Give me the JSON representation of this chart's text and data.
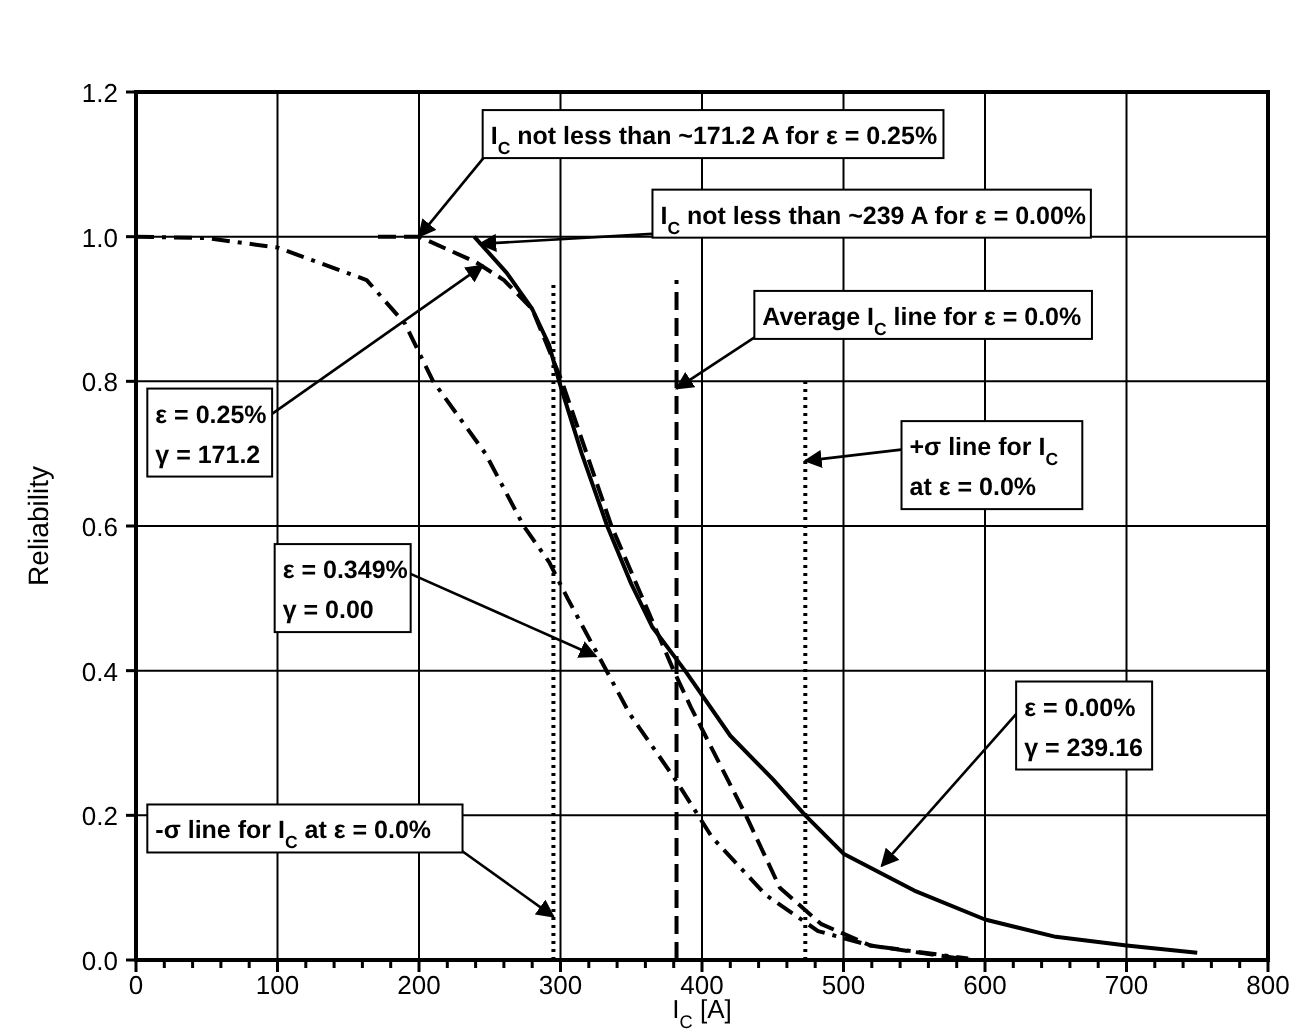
{
  "chart_data": {
    "type": "line",
    "xlabel": "I$_{C}$ [A]",
    "ylabel": "Reliability",
    "xlim": [
      0,
      800
    ],
    "ylim": [
      0,
      1.2
    ],
    "xticks": [
      0,
      {
        "value": 20,
        "label": null
      },
      {
        "value": 40,
        "label": null
      },
      {
        "value": 60,
        "label": null
      },
      {
        "value": 80,
        "label": null
      },
      100,
      {
        "value": 120,
        "label": null
      },
      {
        "value": 140,
        "label": null
      },
      {
        "value": 160,
        "label": null
      },
      {
        "value": 180,
        "label": null
      },
      200,
      {
        "value": 220,
        "label": null
      },
      {
        "value": 240,
        "label": null
      },
      {
        "value": 260,
        "label": null
      },
      {
        "value": 280,
        "label": null
      },
      300,
      {
        "value": 320,
        "label": null
      },
      {
        "value": 340,
        "label": null
      },
      {
        "value": 360,
        "label": null
      },
      {
        "value": 380,
        "label": null
      },
      400,
      {
        "value": 420,
        "label": null
      },
      {
        "value": 440,
        "label": null
      },
      {
        "value": 460,
        "label": null
      },
      {
        "value": 480,
        "label": null
      },
      500,
      {
        "value": 520,
        "label": null
      },
      {
        "value": 540,
        "label": null
      },
      {
        "value": 560,
        "label": null
      },
      {
        "value": 580,
        "label": null
      },
      600,
      {
        "value": 620,
        "label": null
      },
      {
        "value": 640,
        "label": null
      },
      {
        "value": 660,
        "label": null
      },
      {
        "value": 680,
        "label": null
      },
      700,
      {
        "value": 720,
        "label": null
      },
      {
        "value": 740,
        "label": null
      },
      {
        "value": 760,
        "label": null
      },
      {
        "value": 780,
        "label": null
      },
      800
    ],
    "yticks": [
      {
        "value": 0,
        "label": "0.0"
      },
      {
        "value": 0.2,
        "label": "0.2"
      },
      {
        "value": 0.4,
        "label": "0.4"
      },
      {
        "value": 0.6,
        "label": "0.6"
      },
      {
        "value": 0.8,
        "label": "0.8"
      },
      {
        "value": 1,
        "label": "1.0"
      },
      {
        "value": 1.2,
        "label": "1.2"
      }
    ],
    "grid": true,
    "series": [
      {
        "color": "#000000",
        "line_style": "solid",
        "x": [
          239,
          262,
          280,
          292,
          299,
          315,
          333,
          350,
          365,
          388,
          420,
          450,
          473,
          500,
          550,
          600,
          650,
          700,
          750
        ],
        "values": [
          1.0,
          0.95,
          0.9,
          0.85,
          0.8,
          0.7,
          0.6,
          0.52,
          0.46,
          0.4,
          0.31,
          0.25,
          0.2,
          0.147,
          0.096,
          0.056,
          0.032,
          0.02,
          0.01
        ]
      },
      {
        "color": "#000000",
        "line_style": "dashed",
        "x": [
          171,
          200,
          240,
          260,
          280,
          301,
          336,
          380,
          392,
          431,
          455,
          484,
          519,
          572,
          590
        ],
        "values": [
          1.0,
          1.0,
          0.965,
          0.94,
          0.9,
          0.8,
          0.6,
          0.4,
          0.35,
          0.2,
          0.1,
          0.05,
          0.02,
          0.005,
          0.0
        ]
      },
      {
        "color": "#000000",
        "line_style": "dashdot",
        "x": [
          0,
          50,
          100,
          163,
          190,
          210,
          247,
          274,
          292,
          305,
          327,
          349,
          381,
          407,
          445,
          482,
          519,
          588
        ],
        "values": [
          1.0,
          0.998,
          0.985,
          0.94,
          0.88,
          0.8,
          0.7,
          0.6,
          0.55,
          0.5,
          0.42,
          0.34,
          0.25,
          0.17,
          0.09,
          0.04,
          0.02,
          0.002
        ]
      },
      {
        "color": "#000000",
        "line_style": "dotted",
        "x": [
          295,
          295
        ],
        "values": [
          0,
          0.94
        ]
      },
      {
        "color": "#000000",
        "line_style": "dashed",
        "x": [
          382,
          382
        ],
        "values": [
          0,
          0.94
        ]
      },
      {
        "color": "#000000",
        "line_style": "dotted",
        "x": [
          473,
          473
        ],
        "values": [
          0,
          0.8
        ]
      }
    ],
    "annotations": [
      {
        "text": "I$_{C}$ not less than ~171.2 A for ε = 0.25%",
        "x": 200,
        "y": 1.0
      },
      {
        "text": "I$_{C}$ not less than ~239 A for ε = 0.00%",
        "x": 243,
        "y": 0.99
      },
      {
        "text": "Average I$_{C}$ line for ε = 0.0%",
        "x": 382,
        "y": 0.79
      },
      {
        "text": "+σ line for I$_{C}$\nat ε = 0.0%",
        "x": 473,
        "y": 0.69
      },
      {
        "text": "ε = 0.25%\nγ = 171.2",
        "x": 245,
        "y": 0.96
      },
      {
        "text": "ε = 0.349%\nγ = 0.00",
        "x": 325,
        "y": 0.42
      },
      {
        "text": "ε = 0.00%\nγ = 239.16",
        "x": 527,
        "y": 0.13
      },
      {
        "text": "-σ line for I$_{C}$ at ε = 0.0%",
        "x": 295,
        "y": 0.06
      }
    ]
  }
}
